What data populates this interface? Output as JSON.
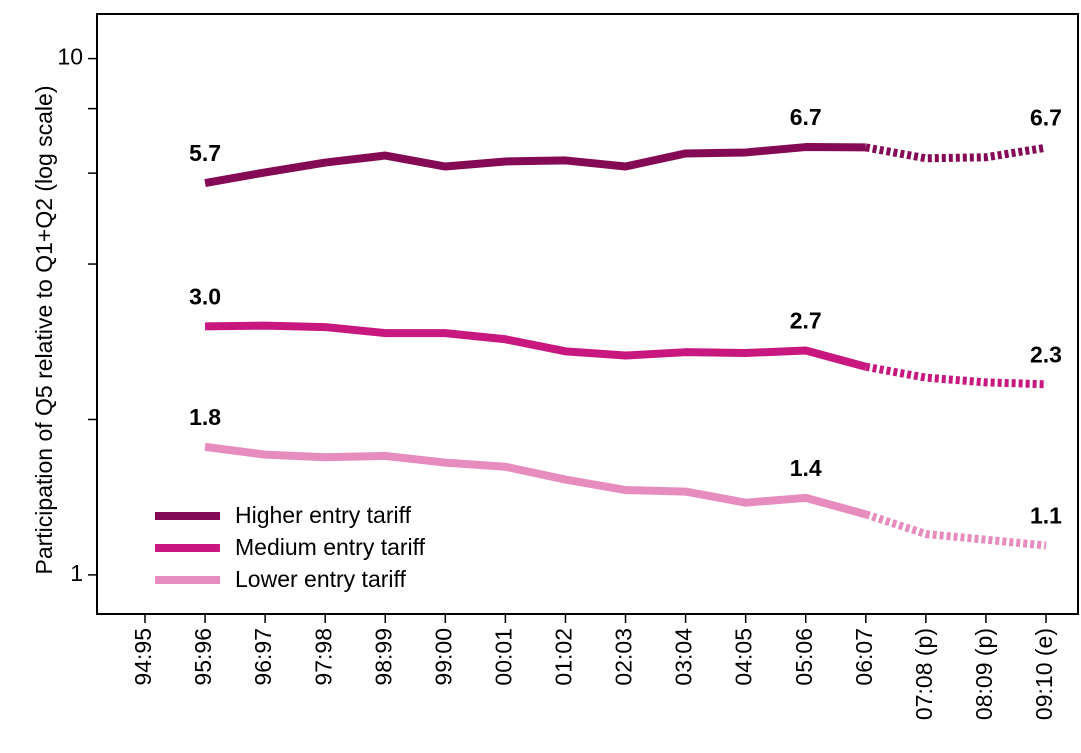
{
  "chart_data": {
    "type": "line",
    "y_label": "Participation of Q5 relative to Q1+Q2 (log scale)",
    "categories": [
      "94:95",
      "95:96",
      "96:97",
      "97:98",
      "98:99",
      "99:00",
      "00:01",
      "01:02",
      "02:03",
      "03:04",
      "04:05",
      "05:06",
      "06:07",
      "07:08 (p)",
      "08:09 (p)",
      "09:10 (e)"
    ],
    "dashed_from": "06:07",
    "log_scale": true,
    "ylim": [
      0.84,
      12.2
    ],
    "yticks": [
      1,
      10
    ],
    "yminor": [
      2,
      4,
      6,
      8
    ],
    "legend": "bottom-left",
    "series": [
      {
        "name": "Higher entry tariff",
        "color": "#850a55",
        "values": [
          null,
          5.74,
          6.02,
          6.29,
          6.49,
          6.18,
          6.32,
          6.35,
          6.18,
          6.55,
          6.58,
          6.74,
          6.73,
          6.41,
          6.44,
          6.72
        ],
        "value_labels": [
          null,
          "5.7",
          null,
          null,
          null,
          null,
          null,
          null,
          null,
          null,
          null,
          "6.7",
          null,
          null,
          null,
          "6.7"
        ]
      },
      {
        "name": "Medium entry tariff",
        "color": "#c8187f",
        "values": [
          null,
          3.03,
          3.04,
          3.02,
          2.94,
          2.94,
          2.86,
          2.71,
          2.66,
          2.7,
          2.69,
          2.72,
          2.53,
          2.41,
          2.36,
          2.34
        ],
        "value_labels": [
          null,
          "3.0",
          null,
          null,
          null,
          null,
          null,
          null,
          null,
          null,
          null,
          "2.7",
          null,
          null,
          null,
          "2.3"
        ]
      },
      {
        "name": "Lower entry tariff",
        "color": "#e68cbf",
        "values": [
          null,
          1.77,
          1.71,
          1.69,
          1.7,
          1.65,
          1.62,
          1.53,
          1.46,
          1.45,
          1.38,
          1.41,
          1.31,
          1.2,
          1.17,
          1.14
        ],
        "value_labels": [
          null,
          "1.8",
          null,
          null,
          null,
          null,
          null,
          null,
          null,
          null,
          null,
          "1.4",
          null,
          null,
          null,
          "1.1"
        ]
      }
    ]
  }
}
